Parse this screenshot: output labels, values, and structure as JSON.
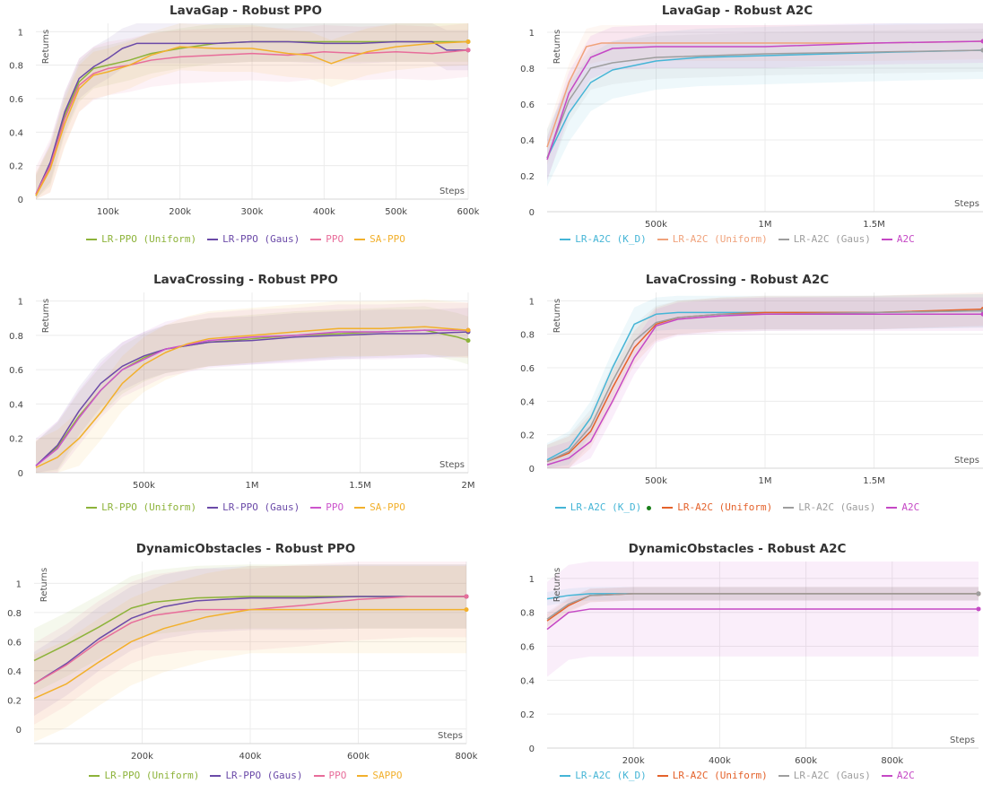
{
  "chart_data": [
    {
      "type": "line",
      "title": "LavaGap - Robust PPO",
      "xlabel": "Steps",
      "ylabel": "Returns",
      "xlim": [
        0,
        600000
      ],
      "ylim": [
        0,
        1.05
      ],
      "xticks": [
        100000,
        200000,
        300000,
        400000,
        500000,
        600000
      ],
      "xtick_labels": [
        "100k",
        "200k",
        "300k",
        "400k",
        "500k",
        "600k"
      ],
      "yticks": [
        0,
        0.2,
        0.4,
        0.6,
        0.8,
        1
      ],
      "ytick_labels": [
        "0",
        "0.2",
        "0.4",
        "0.6",
        "0.8",
        "1"
      ],
      "grid": true,
      "legend_position": "bottom",
      "series": [
        {
          "name": "LR-PPO (Uniform)",
          "color": "#8db33a",
          "band": 0.12,
          "x": [
            0,
            20000,
            40000,
            60000,
            80000,
            100000,
            130000,
            160000,
            200000,
            250000,
            300000,
            350000,
            400000,
            450000,
            500000,
            550000,
            600000
          ],
          "y": [
            0.02,
            0.2,
            0.5,
            0.7,
            0.78,
            0.8,
            0.83,
            0.87,
            0.9,
            0.93,
            0.94,
            0.94,
            0.94,
            0.94,
            0.94,
            0.94,
            0.94
          ]
        },
        {
          "name": "LR-PPO (Gaus)",
          "color": "#6b4aa8",
          "band": 0.12,
          "x": [
            0,
            20000,
            40000,
            60000,
            80000,
            100000,
            120000,
            140000,
            200000,
            250000,
            300000,
            350000,
            400000,
            450000,
            500000,
            550000,
            570000,
            600000
          ],
          "y": [
            0.03,
            0.22,
            0.52,
            0.72,
            0.79,
            0.84,
            0.9,
            0.93,
            0.93,
            0.93,
            0.94,
            0.94,
            0.93,
            0.93,
            0.94,
            0.94,
            0.89,
            0.89
          ]
        },
        {
          "name": "PPO",
          "color": "#e86d9a",
          "band": 0.16,
          "x": [
            0,
            20000,
            40000,
            60000,
            80000,
            100000,
            130000,
            160000,
            200000,
            250000,
            300000,
            350000,
            400000,
            450000,
            500000,
            550000,
            600000
          ],
          "y": [
            0.03,
            0.2,
            0.48,
            0.68,
            0.75,
            0.78,
            0.8,
            0.83,
            0.85,
            0.86,
            0.87,
            0.86,
            0.88,
            0.87,
            0.88,
            0.87,
            0.89
          ]
        },
        {
          "name": "SA-PPO",
          "color": "#f2b02c",
          "band": 0.14,
          "x": [
            0,
            20000,
            40000,
            60000,
            80000,
            100000,
            130000,
            160000,
            200000,
            250000,
            300000,
            350000,
            380000,
            410000,
            430000,
            460000,
            500000,
            550000,
            600000
          ],
          "y": [
            0.02,
            0.18,
            0.45,
            0.66,
            0.74,
            0.76,
            0.8,
            0.86,
            0.91,
            0.9,
            0.9,
            0.87,
            0.86,
            0.81,
            0.84,
            0.88,
            0.91,
            0.93,
            0.94
          ]
        }
      ]
    },
    {
      "type": "line",
      "title": "LavaGap - Robust A2C",
      "xlabel": "Steps",
      "ylabel": "Returns",
      "xlim": [
        0,
        2000000
      ],
      "ylim": [
        0,
        1.05
      ],
      "xticks": [
        500000,
        1000000,
        1500000
      ],
      "xtick_labels": [
        "500k",
        "1M",
        "1.5M"
      ],
      "yticks": [
        0,
        0.2,
        0.4,
        0.6,
        0.8,
        1
      ],
      "ytick_labels": [
        "0",
        "0.2",
        "0.4",
        "0.6",
        "0.8",
        "1"
      ],
      "grid": true,
      "legend_position": "bottom",
      "series": [
        {
          "name": "LR-A2C (K_D)",
          "color": "#45b5d6",
          "band": 0.16,
          "x": [
            0,
            100000,
            200000,
            300000,
            500000,
            700000,
            1000000,
            1300000,
            1600000,
            2000000
          ],
          "y": [
            0.3,
            0.55,
            0.72,
            0.79,
            0.84,
            0.86,
            0.87,
            0.88,
            0.89,
            0.9
          ]
        },
        {
          "name": "LR-A2C (Uniform)",
          "color": "#f0a27b",
          "band": 0.1,
          "x": [
            0,
            100000,
            180000,
            250000,
            500000,
            1000000,
            1500000,
            2000000
          ],
          "y": [
            0.36,
            0.72,
            0.92,
            0.94,
            0.94,
            0.94,
            0.94,
            0.95
          ]
        },
        {
          "name": "LR-A2C (Gaus)",
          "color": "#9e9e9e",
          "band": 0.12,
          "x": [
            0,
            100000,
            200000,
            300000,
            500000,
            1000000,
            1500000,
            2000000
          ],
          "y": [
            0.3,
            0.62,
            0.8,
            0.83,
            0.86,
            0.88,
            0.89,
            0.9
          ]
        },
        {
          "name": "A2C",
          "color": "#c548c5",
          "band": 0.12,
          "x": [
            0,
            100000,
            200000,
            300000,
            500000,
            1000000,
            1500000,
            2000000
          ],
          "y": [
            0.29,
            0.66,
            0.86,
            0.91,
            0.92,
            0.92,
            0.94,
            0.95
          ]
        }
      ]
    },
    {
      "type": "line",
      "title": "LavaCrossing - Robust PPO",
      "xlabel": "Steps",
      "ylabel": "Returns",
      "xlim": [
        0,
        2000000
      ],
      "ylim": [
        0,
        1.05
      ],
      "xticks": [
        500000,
        1000000,
        1500000,
        2000000
      ],
      "xtick_labels": [
        "500k",
        "1M",
        "1.5M",
        "2M"
      ],
      "yticks": [
        0,
        0.2,
        0.4,
        0.6,
        0.8,
        1
      ],
      "ytick_labels": [
        "0",
        "0.2",
        "0.4",
        "0.6",
        "0.8",
        "1"
      ],
      "grid": true,
      "legend_position": "bottom",
      "series": [
        {
          "name": "LR-PPO (Uniform)",
          "color": "#8db33a",
          "band": 0.14,
          "x": [
            0,
            100000,
            200000,
            300000,
            400000,
            500000,
            600000,
            800000,
            1000000,
            1200000,
            1400000,
            1600000,
            1800000,
            1950000,
            2000000
          ],
          "y": [
            0.04,
            0.15,
            0.33,
            0.48,
            0.6,
            0.67,
            0.72,
            0.76,
            0.78,
            0.8,
            0.81,
            0.82,
            0.83,
            0.79,
            0.77
          ]
        },
        {
          "name": "LR-PPO (Gaus)",
          "color": "#6b4aa8",
          "band": 0.14,
          "x": [
            0,
            100000,
            200000,
            300000,
            400000,
            500000,
            600000,
            800000,
            1000000,
            1200000,
            1400000,
            1600000,
            1800000,
            2000000
          ],
          "y": [
            0.04,
            0.16,
            0.36,
            0.52,
            0.62,
            0.68,
            0.72,
            0.76,
            0.77,
            0.79,
            0.8,
            0.81,
            0.81,
            0.82
          ]
        },
        {
          "name": "PPO",
          "color": "#cc55cc",
          "band": 0.16,
          "x": [
            0,
            100000,
            200000,
            300000,
            400000,
            500000,
            600000,
            800000,
            1000000,
            1200000,
            1400000,
            1600000,
            1800000,
            2000000
          ],
          "y": [
            0.04,
            0.14,
            0.32,
            0.48,
            0.6,
            0.66,
            0.72,
            0.77,
            0.79,
            0.8,
            0.82,
            0.82,
            0.83,
            0.83
          ]
        },
        {
          "name": "SA-PPO",
          "color": "#f2b02c",
          "band": 0.16,
          "x": [
            0,
            100000,
            200000,
            300000,
            400000,
            500000,
            600000,
            700000,
            800000,
            1000000,
            1200000,
            1400000,
            1600000,
            1800000,
            2000000
          ],
          "y": [
            0.03,
            0.09,
            0.2,
            0.35,
            0.52,
            0.63,
            0.7,
            0.75,
            0.78,
            0.8,
            0.82,
            0.84,
            0.84,
            0.85,
            0.83
          ]
        }
      ]
    },
    {
      "type": "line",
      "title": "LavaCrossing - Robust A2C",
      "xlabel": "Steps",
      "ylabel": "Returns",
      "xlim": [
        0,
        2000000
      ],
      "ylim": [
        0,
        1.05
      ],
      "xticks": [
        500000,
        1000000,
        1500000
      ],
      "xtick_labels": [
        "500k",
        "1M",
        "1.5M"
      ],
      "yticks": [
        0,
        0.2,
        0.4,
        0.6,
        0.8,
        1
      ],
      "ytick_labels": [
        "0",
        "0.2",
        "0.4",
        "0.6",
        "0.8",
        "1"
      ],
      "grid": true,
      "legend_position": "bottom",
      "series": [
        {
          "name": "LR-A2C (K_D)",
          "color": "#45b5d6",
          "band": 0.1,
          "x": [
            0,
            100000,
            200000,
            300000,
            400000,
            500000,
            600000,
            800000,
            1000000,
            1500000,
            2000000
          ],
          "y": [
            0.05,
            0.12,
            0.3,
            0.6,
            0.86,
            0.92,
            0.93,
            0.93,
            0.93,
            0.93,
            0.94
          ]
        },
        {
          "name": "LR-A2C (Uniform)",
          "color": "#e4622b",
          "band": 0.1,
          "x": [
            0,
            100000,
            200000,
            300000,
            400000,
            500000,
            600000,
            800000,
            1000000,
            1500000,
            2000000
          ],
          "y": [
            0.04,
            0.09,
            0.22,
            0.48,
            0.72,
            0.86,
            0.9,
            0.92,
            0.93,
            0.93,
            0.95
          ]
        },
        {
          "name": "LR-A2C (Gaus)",
          "color": "#9e9e9e",
          "band": 0.1,
          "x": [
            0,
            100000,
            200000,
            300000,
            400000,
            500000,
            600000,
            800000,
            1000000,
            1500000,
            2000000
          ],
          "y": [
            0.04,
            0.1,
            0.25,
            0.52,
            0.76,
            0.87,
            0.9,
            0.92,
            0.92,
            0.93,
            0.94
          ]
        },
        {
          "name": "A2C",
          "color": "#c548c5",
          "band": 0.1,
          "x": [
            0,
            100000,
            200000,
            300000,
            400000,
            500000,
            600000,
            800000,
            1000000,
            1500000,
            2000000
          ],
          "y": [
            0.02,
            0.06,
            0.16,
            0.4,
            0.66,
            0.85,
            0.89,
            0.91,
            0.92,
            0.92,
            0.92
          ]
        }
      ]
    },
    {
      "type": "line",
      "title": "DynamicObstacles - Robust PPO",
      "xlabel": "Steps",
      "ylabel": "Returns",
      "xlim": [
        0,
        800000
      ],
      "ylim": [
        -0.1,
        1.15
      ],
      "xticks": [
        200000,
        400000,
        600000,
        800000
      ],
      "xtick_labels": [
        "200k",
        "400k",
        "600k",
        "800k"
      ],
      "yticks": [
        0,
        0.2,
        0.4,
        0.6,
        0.8,
        1
      ],
      "ytick_labels": [
        "0",
        "0.2",
        "0.4",
        "0.6",
        "0.8",
        "1"
      ],
      "grid": true,
      "legend_position": "bottom",
      "series": [
        {
          "name": "LR-PPO (Uniform)",
          "color": "#8db33a",
          "band": 0.22,
          "x": [
            0,
            60000,
            120000,
            180000,
            220000,
            300000,
            400000,
            500000,
            600000,
            700000,
            800000
          ],
          "y": [
            0.47,
            0.58,
            0.7,
            0.83,
            0.87,
            0.9,
            0.91,
            0.91,
            0.91,
            0.91,
            0.91
          ]
        },
        {
          "name": "LR-PPO (Gaus)",
          "color": "#6b4aa8",
          "band": 0.22,
          "x": [
            0,
            60000,
            120000,
            180000,
            240000,
            300000,
            400000,
            500000,
            600000,
            700000,
            800000
          ],
          "y": [
            0.31,
            0.45,
            0.62,
            0.76,
            0.84,
            0.88,
            0.9,
            0.9,
            0.91,
            0.91,
            0.91
          ]
        },
        {
          "name": "PPO",
          "color": "#e86d9a",
          "band": 0.28,
          "x": [
            0,
            60000,
            120000,
            180000,
            220000,
            300000,
            400000,
            500000,
            600000,
            700000,
            800000
          ],
          "y": [
            0.31,
            0.44,
            0.6,
            0.73,
            0.78,
            0.82,
            0.82,
            0.85,
            0.89,
            0.91,
            0.91
          ]
        },
        {
          "name": "SAPPO",
          "color": "#f2b02c",
          "band": 0.3,
          "x": [
            0,
            60000,
            120000,
            180000,
            240000,
            320000,
            400000,
            500000,
            600000,
            700000,
            800000
          ],
          "y": [
            0.21,
            0.31,
            0.46,
            0.6,
            0.69,
            0.77,
            0.82,
            0.82,
            0.82,
            0.82,
            0.82
          ]
        }
      ]
    },
    {
      "type": "line",
      "title": "DynamicObstacles - Robust A2C",
      "xlabel": "Steps",
      "ylabel": "Returns",
      "xlim": [
        0,
        1000000
      ],
      "ylim": [
        0,
        1.1
      ],
      "xticks": [
        200000,
        400000,
        600000,
        800000
      ],
      "xtick_labels": [
        "200k",
        "400k",
        "600k",
        "800k"
      ],
      "yticks": [
        0,
        0.2,
        0.4,
        0.6,
        0.8,
        1
      ],
      "ytick_labels": [
        "0",
        "0.2",
        "0.4",
        "0.6",
        "0.8",
        "1"
      ],
      "grid": true,
      "legend_position": "bottom",
      "series": [
        {
          "name": "LR-A2C (K_D)",
          "color": "#45b5d6",
          "band": 0.04,
          "x": [
            0,
            50000,
            100000,
            200000,
            400000,
            600000,
            800000,
            1000000
          ],
          "y": [
            0.88,
            0.9,
            0.91,
            0.91,
            0.91,
            0.91,
            0.91,
            0.91
          ]
        },
        {
          "name": "LR-A2C (Uniform)",
          "color": "#e4622b",
          "band": 0.04,
          "x": [
            0,
            50000,
            100000,
            200000,
            400000,
            600000,
            800000,
            1000000
          ],
          "y": [
            0.75,
            0.84,
            0.9,
            0.91,
            0.91,
            0.91,
            0.91,
            0.91
          ]
        },
        {
          "name": "LR-A2C (Gaus)",
          "color": "#9e9e9e",
          "band": 0.04,
          "x": [
            0,
            50000,
            100000,
            200000,
            400000,
            600000,
            800000,
            1000000
          ],
          "y": [
            0.76,
            0.85,
            0.9,
            0.91,
            0.91,
            0.91,
            0.91,
            0.91
          ]
        },
        {
          "name": "A2C",
          "color": "#c548c5",
          "band": 0.28,
          "x": [
            0,
            50000,
            100000,
            200000,
            400000,
            600000,
            800000,
            1000000
          ],
          "y": [
            0.7,
            0.8,
            0.82,
            0.82,
            0.82,
            0.82,
            0.82,
            0.82
          ]
        }
      ]
    }
  ]
}
